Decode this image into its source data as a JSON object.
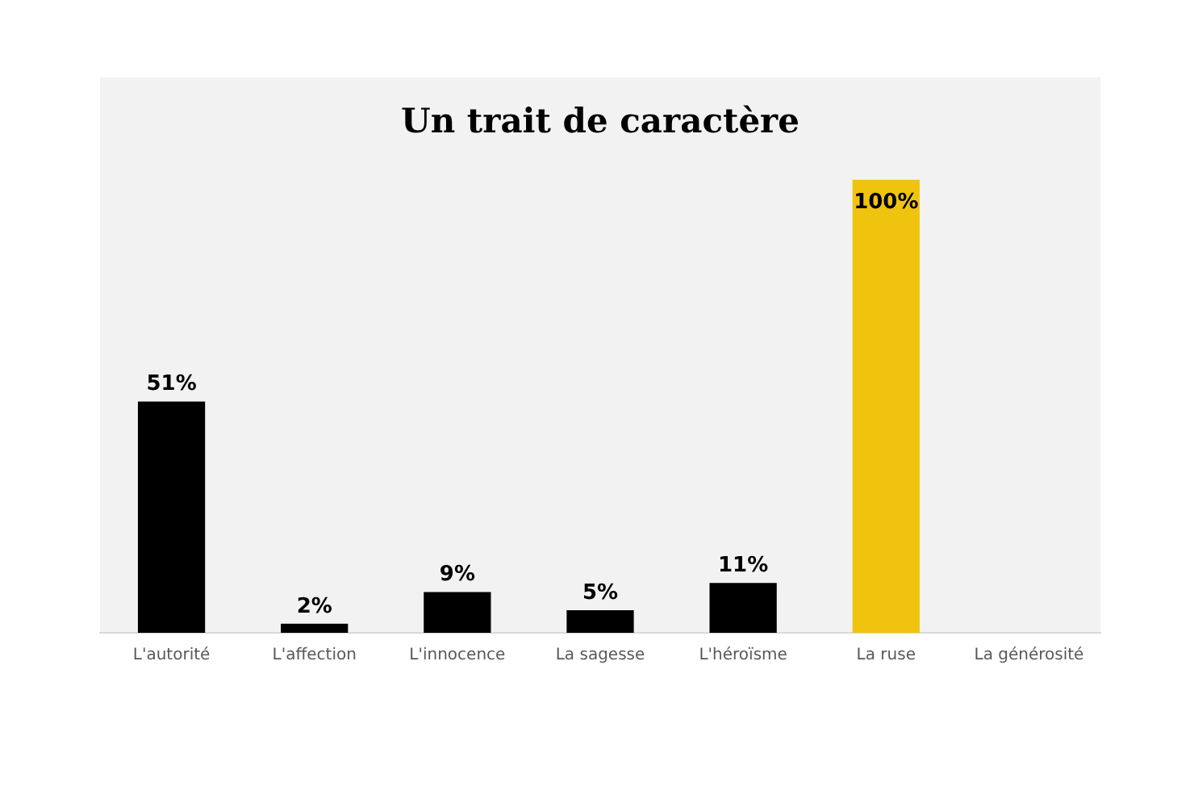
{
  "chart_data": {
    "type": "bar",
    "title": "Un trait de caractère",
    "categories": [
      "L'autorité",
      "L'affection",
      "L'innocence",
      "La sagesse",
      "L'héroïsme",
      "La ruse",
      "La générosité"
    ],
    "values": [
      51,
      2,
      9,
      5,
      11,
      100,
      null
    ],
    "colors": [
      "#000000",
      "#000000",
      "#000000",
      "#000000",
      "#000000",
      "#f0c30f",
      "#000000"
    ],
    "value_labels": [
      "51%",
      "2%",
      "9%",
      "5%",
      "11%",
      "100%",
      null
    ],
    "grid": false,
    "legend": false
  }
}
